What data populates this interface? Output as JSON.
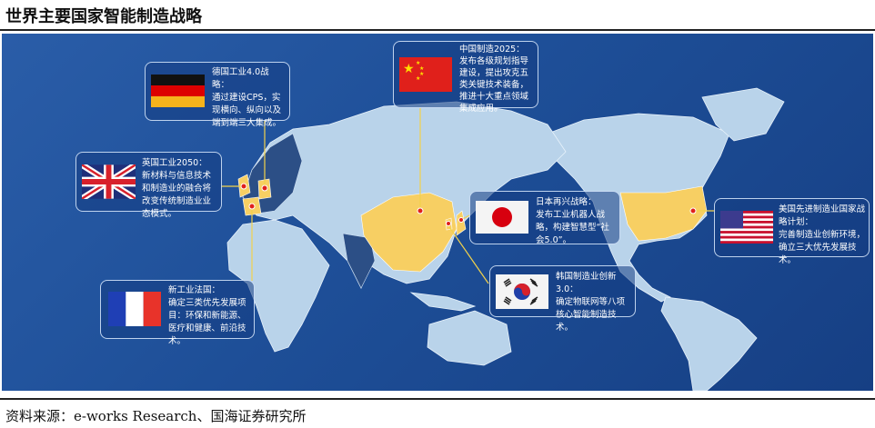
{
  "title": "世界主要国家智能制造战略",
  "source": "资料来源：e-works Research、国海证券研究所",
  "colors": {
    "background": "#1e4f98",
    "land": "#b9d3ea",
    "highlight": "#f7cf63",
    "marker": "#e0201b",
    "connector": "#f2d24b"
  },
  "strategies": [
    {
      "country": "Germany",
      "flag": "germany-flag",
      "heading": "德国工业4.0战略：",
      "text": "通过建设CPS，实现横向、纵向以及端到端三大集成。"
    },
    {
      "country": "UK",
      "flag": "uk-flag",
      "heading": "英国工业2050：",
      "text": "新材料与信息技术和制造业的融合将改变传统制造业业态模式。"
    },
    {
      "country": "China",
      "flag": "china-flag",
      "heading": "中国制造2025：",
      "text": "发布各级规划指导建设，提出攻克五类关键技术装备，推进十大重点领域集成应用。"
    },
    {
      "country": "Japan",
      "flag": "japan-flag",
      "heading": "日本再兴战略：",
      "text": "发布工业机器人战略，构建智慧型“社会5.0”。"
    },
    {
      "country": "Korea",
      "flag": "korea-flag",
      "heading": "韩国制造业创新3.0：",
      "text": "确定物联网等八项核心智能制造技术。"
    },
    {
      "country": "USA",
      "flag": "usa-flag",
      "heading": "美国先进制造业国家战略计划：",
      "text": "完善制造业创新环境，确立三大优先发展技术。"
    },
    {
      "country": "France",
      "flag": "france-flag",
      "heading": "新工业法国：",
      "text": "确定三类优先发展项目：环保和新能源、医疗和健康、前沿技术。"
    }
  ]
}
